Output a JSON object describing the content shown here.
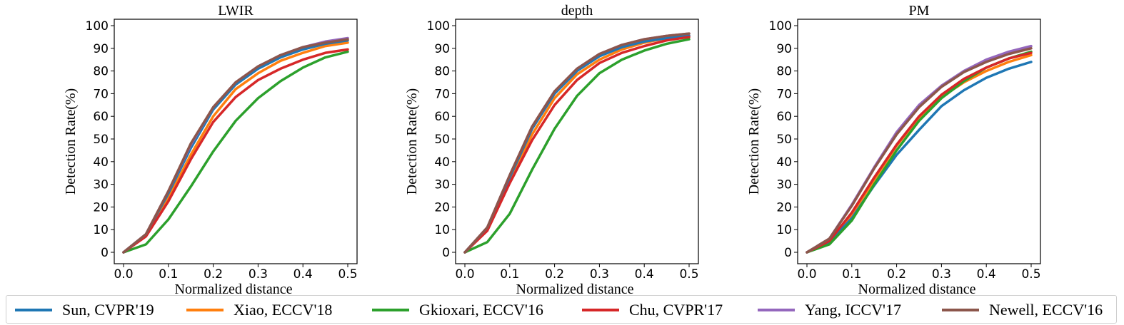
{
  "chart_data": [
    {
      "type": "line",
      "title": "LWIR",
      "xlabel": "Normalized distance",
      "ylabel": "Detection Rate(%)",
      "xlim": [
        0,
        0.5
      ],
      "ylim": [
        0,
        100
      ],
      "xticks": [
        "0.0",
        "0.1",
        "0.2",
        "0.3",
        "0.4",
        "0.5"
      ],
      "yticks": [
        "0",
        "10",
        "20",
        "30",
        "40",
        "50",
        "60",
        "70",
        "80",
        "90",
        "100"
      ],
      "grid": false,
      "x": [
        0,
        0.05,
        0.1,
        0.15,
        0.2,
        0.25,
        0.3,
        0.35,
        0.4,
        0.45,
        0.5
      ],
      "series": [
        {
          "name": "Sun, CVPR'19",
          "values": [
            0,
            8,
            26,
            46,
            63,
            74,
            81,
            86,
            89.5,
            92,
            93.5
          ]
        },
        {
          "name": "Xiao, ECCV'18",
          "values": [
            0,
            7.5,
            24,
            43,
            60,
            72,
            79,
            84.5,
            88,
            91,
            92.5
          ]
        },
        {
          "name": "Gkioxari, ECCV'16",
          "values": [
            0,
            3.5,
            14.5,
            29,
            44.5,
            58,
            68,
            75.5,
            81.5,
            86,
            88.5
          ]
        },
        {
          "name": "Chu, CVPR'17",
          "values": [
            0,
            7,
            22.5,
            41,
            57.5,
            68.5,
            76,
            81,
            85,
            88,
            89.5
          ]
        },
        {
          "name": "Yang, ICCV'17",
          "values": [
            0,
            8,
            27,
            47.5,
            64,
            75,
            82,
            87,
            90.5,
            93,
            94.5
          ]
        },
        {
          "name": "Newell, ECCV'16",
          "values": [
            0,
            8,
            27,
            48,
            64,
            75,
            82,
            87,
            90.5,
            92.5,
            94
          ]
        }
      ]
    },
    {
      "type": "line",
      "title": "depth",
      "xlabel": "Normalized distance",
      "ylabel": "Detection Rate(%)",
      "xlim": [
        0,
        0.5
      ],
      "ylim": [
        0,
        100
      ],
      "xticks": [
        "0.0",
        "0.1",
        "0.2",
        "0.3",
        "0.4",
        "0.5"
      ],
      "yticks": [
        "0",
        "10",
        "20",
        "30",
        "40",
        "50",
        "60",
        "70",
        "80",
        "90",
        "100"
      ],
      "grid": false,
      "x": [
        0,
        0.05,
        0.1,
        0.15,
        0.2,
        0.25,
        0.3,
        0.35,
        0.4,
        0.45,
        0.5
      ],
      "series": [
        {
          "name": "Sun, CVPR'19",
          "values": [
            0,
            10.5,
            33,
            54.5,
            70,
            80,
            86.5,
            90.5,
            93,
            94.5,
            95.5
          ]
        },
        {
          "name": "Xiao, ECCV'18",
          "values": [
            0,
            10,
            32,
            52,
            68,
            78.5,
            85,
            89.5,
            92.5,
            94.5,
            95.5
          ]
        },
        {
          "name": "Gkioxari, ECCV'16",
          "values": [
            0,
            4.5,
            17,
            36.5,
            54.5,
            69,
            79,
            85,
            89,
            92,
            94
          ]
        },
        {
          "name": "Chu, CVPR'17",
          "values": [
            0,
            9.5,
            30.5,
            49.5,
            65,
            76,
            83.5,
            88,
            91,
            93.5,
            95
          ]
        },
        {
          "name": "Yang, ICCV'17",
          "values": [
            0,
            11,
            34,
            55.5,
            71,
            81,
            87.5,
            91.5,
            94,
            95.5,
            96.5
          ]
        },
        {
          "name": "Newell, ECCV'16",
          "values": [
            0,
            11,
            34,
            55.5,
            71,
            81,
            87.5,
            91.5,
            94,
            95.5,
            96.5
          ]
        }
      ]
    },
    {
      "type": "line",
      "title": "PM",
      "xlabel": "Normalized distance",
      "ylabel": "Detection Rate(%)",
      "xlim": [
        0,
        0.5
      ],
      "ylim": [
        0,
        100
      ],
      "xticks": [
        "0.0",
        "0.1",
        "0.2",
        "0.3",
        "0.4",
        "0.5"
      ],
      "yticks": [
        "0",
        "10",
        "20",
        "30",
        "40",
        "50",
        "60",
        "70",
        "80",
        "90",
        "100"
      ],
      "grid": false,
      "x": [
        0,
        0.05,
        0.1,
        0.15,
        0.2,
        0.25,
        0.3,
        0.35,
        0.4,
        0.45,
        0.5
      ],
      "series": [
        {
          "name": "Sun, CVPR'19",
          "values": [
            0,
            4.5,
            15,
            29.5,
            43,
            54,
            64.5,
            71.5,
            77,
            81,
            84
          ]
        },
        {
          "name": "Xiao, ECCV'18",
          "values": [
            0,
            4.5,
            16.5,
            32,
            47,
            59.5,
            68.5,
            75,
            80,
            84,
            87
          ]
        },
        {
          "name": "Gkioxari, ECCV'16",
          "values": [
            0,
            3.5,
            14,
            30,
            45,
            58,
            68,
            75.5,
            81.5,
            85.5,
            88.5
          ]
        },
        {
          "name": "Chu, CVPR'17",
          "values": [
            0,
            5,
            17.5,
            33,
            47.5,
            60,
            69.5,
            76.5,
            81.5,
            85.5,
            88
          ]
        },
        {
          "name": "Yang, ICCV'17",
          "values": [
            0,
            6,
            21,
            37.5,
            53,
            65,
            73.5,
            80,
            85,
            88.5,
            91
          ]
        },
        {
          "name": "Newell, ECCV'16",
          "values": [
            0,
            6,
            20.5,
            37,
            52,
            64,
            73,
            79.5,
            84,
            87.5,
            90
          ]
        }
      ]
    }
  ],
  "legend": {
    "placement": "bottom",
    "items": [
      {
        "label": "Sun, CVPR'19",
        "color": "#1f77b4"
      },
      {
        "label": "Xiao, ECCV'18",
        "color": "#ff7f0e"
      },
      {
        "label": "Gkioxari, ECCV'16",
        "color": "#2ca02c"
      },
      {
        "label": "Chu, CVPR'17",
        "color": "#d62728"
      },
      {
        "label": "Yang, ICCV'17",
        "color": "#9467bd"
      },
      {
        "label": "Newell, ECCV'16",
        "color": "#8c564b"
      }
    ]
  }
}
